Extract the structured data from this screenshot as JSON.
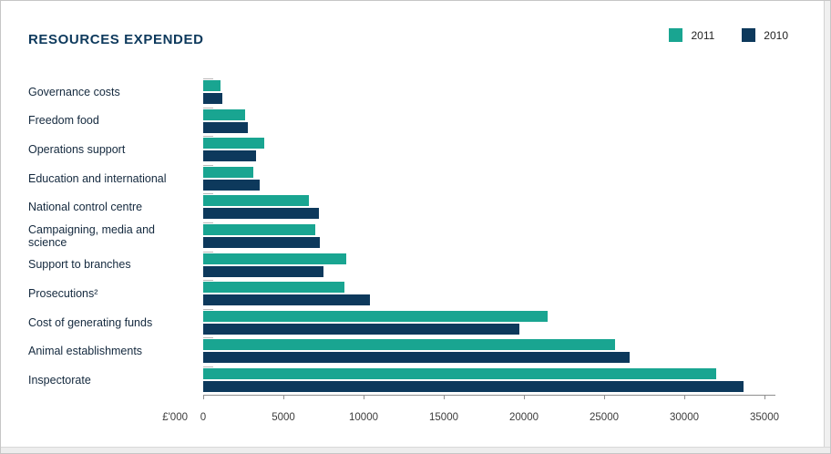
{
  "header": {
    "title": "RESOURCES EXPENDED"
  },
  "legend": [
    {
      "label": "2011",
      "color": "#19a591"
    },
    {
      "label": "2010",
      "color": "#0d395c"
    }
  ],
  "chart_data": {
    "type": "bar",
    "orientation": "horizontal",
    "title": "RESOURCES EXPENDED",
    "unit_label": "£'000",
    "categories": [
      "Governance costs",
      "Freedom food",
      "Operations support",
      "Education and international",
      "National control centre",
      "Campaigning, media and science",
      "Support to branches",
      "Prosecutions²",
      "Cost of generating funds",
      "Animal establishments",
      "Inspectorate"
    ],
    "series": [
      {
        "name": "2011",
        "color": "#19a591",
        "values": [
          1100,
          2600,
          3800,
          3100,
          6600,
          7000,
          8900,
          8800,
          21500,
          25700,
          32000
        ]
      },
      {
        "name": "2010",
        "color": "#0d395c",
        "values": [
          1200,
          2800,
          3300,
          3500,
          7200,
          7300,
          7500,
          10400,
          19700,
          26600,
          33700
        ]
      }
    ],
    "xlim": [
      0,
      35000
    ],
    "xticks": [
      0,
      5000,
      10000,
      15000,
      20000,
      25000,
      30000,
      35000
    ],
    "grid": false,
    "legend_position": "top-right"
  }
}
